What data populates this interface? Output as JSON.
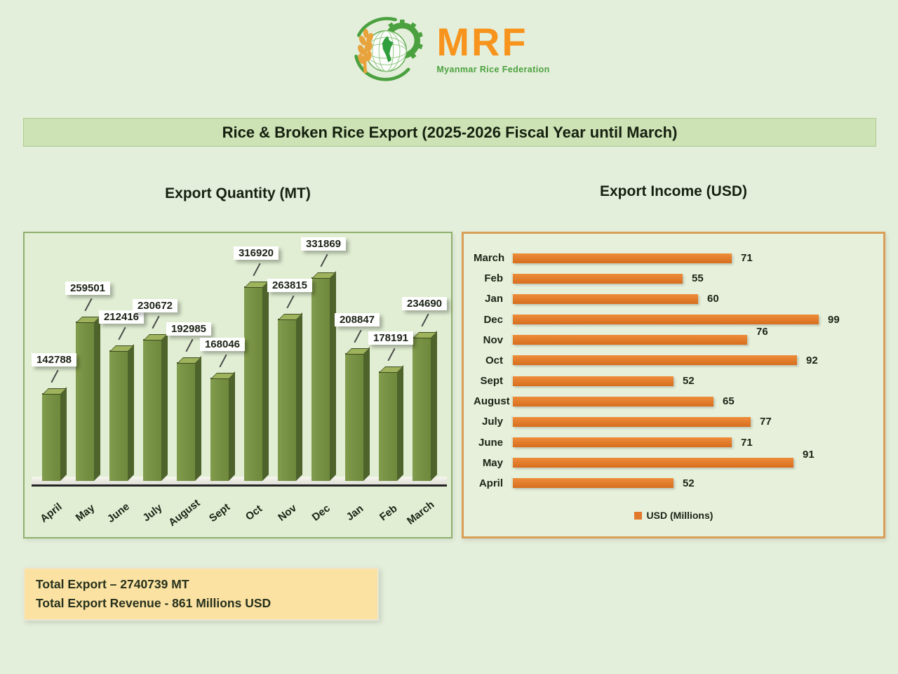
{
  "logo": {
    "brand": "MRF",
    "tagline": "Myanmar Rice Federation",
    "brand_color": "#F7941D",
    "tagline_color": "#4BA13F"
  },
  "title_banner": {
    "text": "Rice & Broken Rice Export (2025-2026 Fiscal Year until March)"
  },
  "totals": {
    "line1": "Total Export – 2740739 MT",
    "line2": "Total Export Revenue  - 861 Millions USD"
  },
  "icons": {
    "logo": "mrf-logo-icon (wheat ear, globe with Myanmar map, gear)",
    "legend_swatch": "legend-swatch-icon (orange square)"
  },
  "chart_data": [
    {
      "type": "bar",
      "style": "3d-column",
      "title": "Export Quantity (MT)",
      "categories": [
        "April",
        "May",
        "June",
        "July",
        "August",
        "Sept",
        "Oct",
        "Nov",
        "Dec",
        "Jan",
        "Feb",
        "March"
      ],
      "values": [
        142788,
        259501,
        212416,
        230672,
        192985,
        168046,
        316920,
        263815,
        331869,
        208847,
        178191,
        234690
      ],
      "ylim": [
        0,
        331869
      ],
      "bar_color": "#75903F",
      "data_labels": "white callout boxes above each bar",
      "grid": false,
      "legend": null
    },
    {
      "type": "bar",
      "orientation": "horizontal",
      "title": "Export Income (USD)",
      "categories": [
        "March",
        "Feb",
        "Jan",
        "Dec",
        "Nov",
        "Oct",
        "Sept",
        "August",
        "July",
        "June",
        "May",
        "April"
      ],
      "values": [
        71,
        55,
        60,
        99,
        76,
        92,
        52,
        65,
        77,
        71,
        91,
        52
      ],
      "raised_labels": [
        "Nov",
        "May"
      ],
      "xlim": [
        0,
        110
      ],
      "bar_color": "#E2782A",
      "grid": false,
      "legend": "USD (Millions)",
      "legend_position": "bottom"
    }
  ]
}
